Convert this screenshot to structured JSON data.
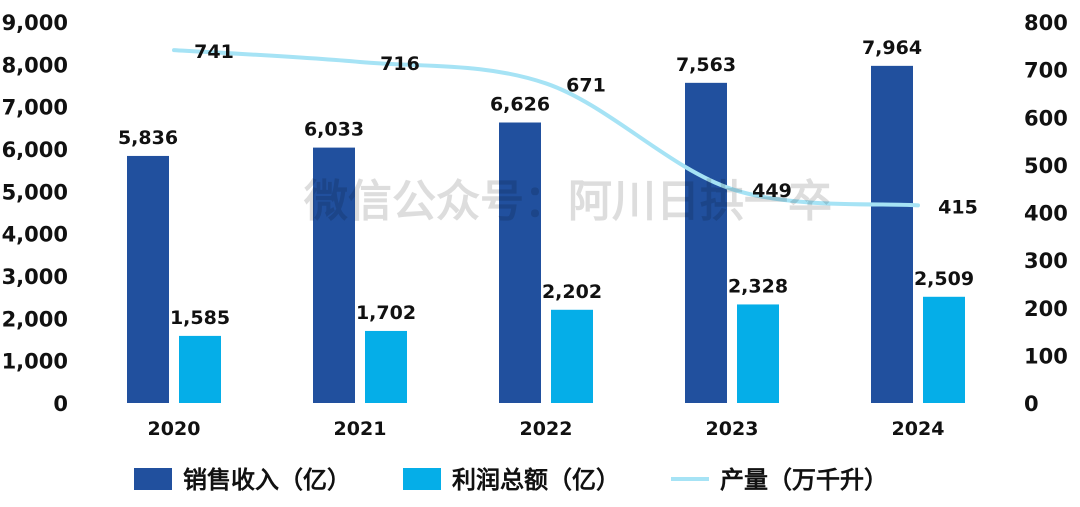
{
  "chart_data": {
    "type": "bar",
    "categories": [
      "2020",
      "2021",
      "2022",
      "2023",
      "2024"
    ],
    "series": [
      {
        "name": "销售收入（亿）",
        "type": "bar",
        "axis": "left",
        "color": "#21509e",
        "values": [
          5836,
          6033,
          6626,
          7563,
          7964
        ],
        "labels": [
          "5,836",
          "6,033",
          "6,626",
          "7,563",
          "7,964"
        ]
      },
      {
        "name": "利润总额（亿）",
        "type": "bar",
        "axis": "left",
        "color": "#05aee8",
        "values": [
          1585,
          1702,
          2202,
          2328,
          2509
        ],
        "labels": [
          "1,585",
          "1,702",
          "2,202",
          "2,328",
          "2,509"
        ]
      },
      {
        "name": "产量（万千升）",
        "type": "line",
        "axis": "right",
        "color": "#a6e3f5",
        "values": [
          741,
          716,
          671,
          449,
          415
        ],
        "labels": [
          "741",
          "716",
          "671",
          "449",
          "415"
        ]
      }
    ],
    "y_left": {
      "min": 0,
      "max": 9000,
      "ticks": [
        "0",
        "1,000",
        "2,000",
        "3,000",
        "4,000",
        "5,000",
        "6,000",
        "7,000",
        "8,000",
        "9,000"
      ]
    },
    "y_right": {
      "min": 0,
      "max": 800,
      "ticks": [
        "0",
        "100",
        "200",
        "300",
        "400",
        "500",
        "600",
        "700",
        "800"
      ]
    },
    "grid": false,
    "legend_position": "bottom"
  },
  "watermark": "微信公众号：阿川日拱一卒"
}
